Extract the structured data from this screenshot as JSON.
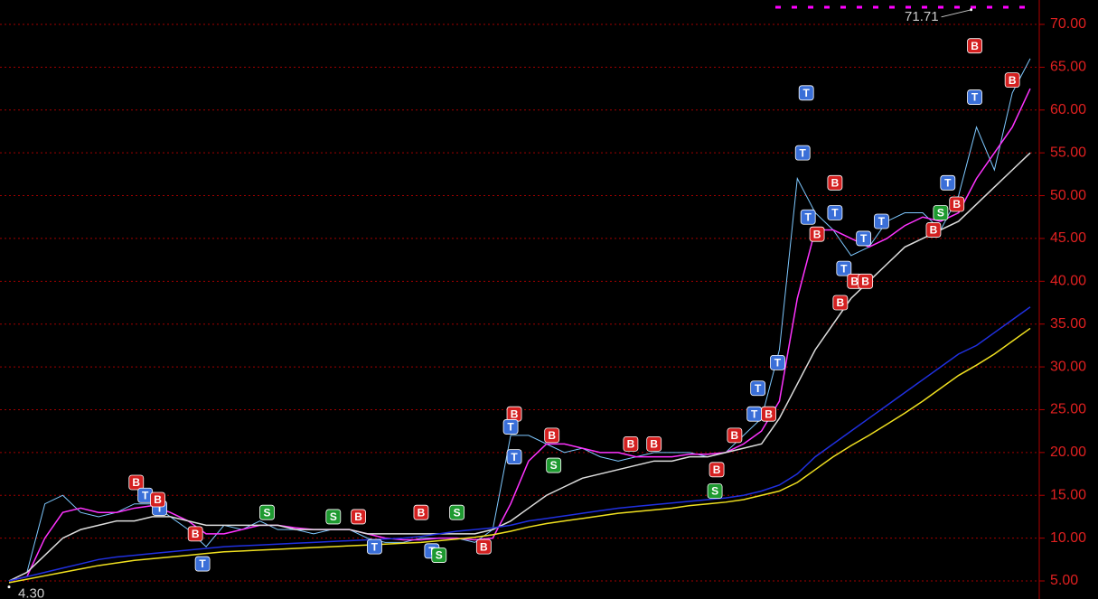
{
  "chart_data": {
    "type": "line",
    "ylim": [
      2.89,
      72.85
    ],
    "yticks": [
      {
        "value": 5,
        "label": "5.00"
      },
      {
        "value": 10,
        "label": "10.00"
      },
      {
        "value": 15,
        "label": "15.00"
      },
      {
        "value": 20,
        "label": "20.00"
      },
      {
        "value": 25,
        "label": "25.00"
      },
      {
        "value": 30,
        "label": "30.00"
      },
      {
        "value": 35,
        "label": "35.00"
      },
      {
        "value": 40,
        "label": "40.00"
      },
      {
        "value": 45,
        "label": "45.00"
      },
      {
        "value": 50,
        "label": "50.00"
      },
      {
        "value": 55,
        "label": "55.00"
      },
      {
        "value": 60,
        "label": "60.00"
      },
      {
        "value": 65,
        "label": "65.00"
      },
      {
        "value": 70,
        "label": "70.00"
      }
    ],
    "grid": true,
    "series": [
      {
        "color": "#7ec8ff",
        "values": [
          5,
          6,
          14,
          15,
          13,
          12.5,
          13,
          14,
          14,
          12.5,
          11,
          9,
          11.5,
          11,
          12,
          11,
          11,
          10.5,
          11,
          11,
          10,
          9.5,
          9.5,
          10,
          10,
          10,
          9.5,
          11,
          22,
          22,
          21,
          20,
          20.5,
          19.5,
          19,
          19.5,
          20,
          20,
          20,
          19.5,
          20,
          22,
          24,
          32,
          52,
          48,
          46,
          43,
          44,
          47,
          48,
          48,
          46,
          50,
          58,
          53,
          62,
          66
        ]
      },
      {
        "color": "#ff33ff",
        "values": [
          5,
          5.5,
          10,
          13,
          13.5,
          13,
          13,
          13.5,
          13.8,
          13,
          12,
          10.5,
          10.5,
          11,
          11.5,
          11.5,
          11.2,
          11,
          11,
          11,
          10.5,
          10,
          9.8,
          9.8,
          10,
          10,
          9.8,
          10,
          14,
          19,
          21,
          21,
          20.5,
          20,
          20,
          19.5,
          19.5,
          19.5,
          19.8,
          19.8,
          20,
          21,
          22.5,
          26,
          38,
          46,
          46,
          45,
          44,
          45,
          46.5,
          47.5,
          47,
          48,
          52,
          55,
          58,
          62.5
        ]
      },
      {
        "color": "#dddddd",
        "values": [
          5,
          6,
          8,
          10,
          11,
          11.5,
          12,
          12,
          12.5,
          12.5,
          12,
          11.5,
          11.5,
          11.5,
          11.5,
          11.5,
          11,
          11,
          11,
          11,
          10.5,
          10.5,
          10.5,
          10.5,
          10.5,
          10.5,
          10.5,
          11,
          12,
          13.5,
          15,
          16,
          17,
          17.5,
          18,
          18.5,
          19,
          19,
          19.5,
          19.5,
          20,
          20.5,
          21,
          24,
          28,
          32,
          35,
          38,
          40,
          42,
          44,
          45,
          46,
          47,
          49,
          51,
          53,
          55
        ]
      },
      {
        "color": "#2030e0",
        "values": [
          5,
          5.5,
          6,
          6.5,
          7,
          7.5,
          7.8,
          8,
          8.2,
          8.4,
          8.6,
          8.8,
          9,
          9.1,
          9.2,
          9.3,
          9.4,
          9.5,
          9.6,
          9.7,
          9.8,
          9.9,
          10,
          10.2,
          10.5,
          10.8,
          11,
          11.2,
          11.5,
          12,
          12.3,
          12.6,
          12.9,
          13.2,
          13.5,
          13.7,
          13.9,
          14.1,
          14.3,
          14.5,
          14.7,
          15,
          15.5,
          16.2,
          17.5,
          19.5,
          21,
          22.5,
          24,
          25.5,
          27,
          28.5,
          30,
          31.5,
          32.5,
          34,
          35.5,
          37
        ]
      },
      {
        "color": "#f0e020",
        "values": [
          4.8,
          5.2,
          5.6,
          6,
          6.4,
          6.8,
          7.1,
          7.4,
          7.6,
          7.8,
          8,
          8.2,
          8.4,
          8.5,
          8.6,
          8.7,
          8.8,
          8.9,
          9,
          9.1,
          9.2,
          9.3,
          9.4,
          9.5,
          9.7,
          9.9,
          10.1,
          10.4,
          10.8,
          11.3,
          11.7,
          12,
          12.3,
          12.6,
          12.9,
          13.1,
          13.3,
          13.5,
          13.8,
          14,
          14.2,
          14.5,
          15,
          15.5,
          16.5,
          18,
          19.5,
          20.8,
          22,
          23.3,
          24.6,
          26,
          27.5,
          29,
          30.2,
          31.5,
          33,
          34.5
        ]
      }
    ],
    "markers": [
      {
        "text": "B",
        "x": 53.9,
        "value": 67.5
      },
      {
        "text": "T",
        "x": 53.9,
        "value": 61.5
      },
      {
        "text": "B",
        "x": 56,
        "value": 63.5
      },
      {
        "text": "T",
        "x": 44.5,
        "value": 62
      },
      {
        "text": "T",
        "x": 44.3,
        "value": 55
      },
      {
        "text": "B",
        "x": 46.1,
        "value": 51.5
      },
      {
        "text": "T",
        "x": 44.6,
        "value": 47.5
      },
      {
        "text": "B",
        "x": 45.1,
        "value": 45.5
      },
      {
        "text": "T",
        "x": 46.1,
        "value": 48
      },
      {
        "text": "B",
        "x": 46.4,
        "value": 37.5
      },
      {
        "text": "T",
        "x": 46.6,
        "value": 41.5
      },
      {
        "text": "B",
        "x": 47.2,
        "value": 40
      },
      {
        "text": "B",
        "x": 47.8,
        "value": 40
      },
      {
        "text": "T",
        "x": 47.7,
        "value": 45
      },
      {
        "text": "T",
        "x": 48.7,
        "value": 47
      },
      {
        "text": "S",
        "x": 52,
        "value": 48
      },
      {
        "text": "B",
        "x": 51.6,
        "value": 46
      },
      {
        "text": "B",
        "x": 52.9,
        "value": 49
      },
      {
        "text": "T",
        "x": 52.4,
        "value": 51.5
      },
      {
        "text": "B",
        "x": 28.2,
        "value": 24.5
      },
      {
        "text": "T",
        "x": 28,
        "value": 23
      },
      {
        "text": "T",
        "x": 28.2,
        "value": 19.5
      },
      {
        "text": "S",
        "x": 30.4,
        "value": 18.5
      },
      {
        "text": "B",
        "x": 30.3,
        "value": 22
      },
      {
        "text": "B",
        "x": 34.7,
        "value": 21
      },
      {
        "text": "B",
        "x": 36,
        "value": 21
      },
      {
        "text": "B",
        "x": 39.5,
        "value": 18
      },
      {
        "text": "S",
        "x": 39.4,
        "value": 15.5
      },
      {
        "text": "B",
        "x": 40.5,
        "value": 22
      },
      {
        "text": "T",
        "x": 41.6,
        "value": 24.5
      },
      {
        "text": "T",
        "x": 41.8,
        "value": 27.5
      },
      {
        "text": "T",
        "x": 42.9,
        "value": 30.5
      },
      {
        "text": "B",
        "x": 42.4,
        "value": 24.5
      },
      {
        "text": "B",
        "x": 7.1,
        "value": 16.5
      },
      {
        "text": "T",
        "x": 7.6,
        "value": 15
      },
      {
        "text": "T",
        "x": 8.4,
        "value": 13.5
      },
      {
        "text": "B",
        "x": 8.3,
        "value": 14.5
      },
      {
        "text": "S",
        "x": 14.4,
        "value": 13
      },
      {
        "text": "T",
        "x": 10.8,
        "value": 7
      },
      {
        "text": "B",
        "x": 10.4,
        "value": 10.5
      },
      {
        "text": "B",
        "x": 23,
        "value": 13
      },
      {
        "text": "T",
        "x": 23.6,
        "value": 8.5
      },
      {
        "text": "S",
        "x": 25,
        "value": 13
      },
      {
        "text": "B",
        "x": 26.5,
        "value": 9
      },
      {
        "text": "S",
        "x": 24,
        "value": 8
      },
      {
        "text": "S",
        "x": 18.1,
        "value": 12.5
      },
      {
        "text": "B",
        "x": 19.5,
        "value": 12.5
      },
      {
        "text": "T",
        "x": 20.4,
        "value": 9
      }
    ],
    "annotations": [
      {
        "text": "71.71",
        "x": 53.7,
        "value": 71.71
      },
      {
        "text": "4.30",
        "x": 0,
        "value": 4.3
      }
    ]
  }
}
